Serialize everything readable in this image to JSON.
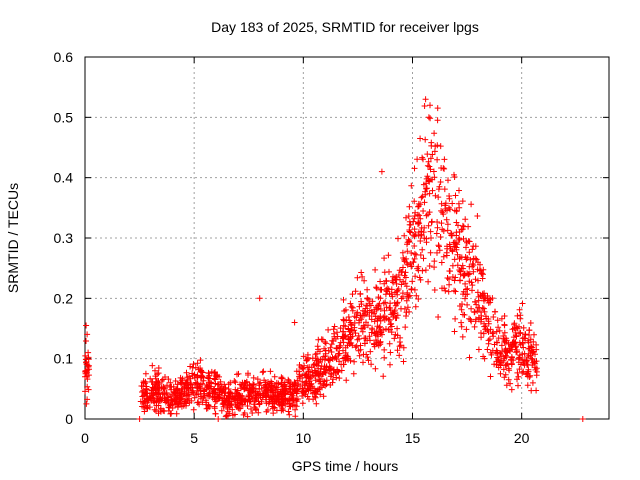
{
  "chart_data": {
    "type": "scatter",
    "title": "Day 183 of 2025, SRMTID for receiver lpgs",
    "xlabel": "GPS time / hours",
    "ylabel": "SRMTID / TECUs",
    "xlim": [
      0,
      24
    ],
    "ylim": [
      0,
      0.6
    ],
    "xticks": [
      0,
      5,
      10,
      15,
      20
    ],
    "xtick_labels": [
      "0",
      "5",
      "10",
      "15",
      "20"
    ],
    "yticks": [
      0,
      0.1,
      0.2,
      0.3,
      0.4,
      0.5,
      0.6
    ],
    "ytick_labels": [
      "0",
      "0.1",
      "0.2",
      "0.3",
      "0.4",
      "0.5",
      "0.6"
    ],
    "grid": true,
    "marker": "+",
    "color": "#ff0000",
    "series": [
      {
        "name": "SRMTID",
        "trend_x": [
          0.0,
          0.2,
          2.5,
          3.0,
          3.5,
          4.0,
          4.5,
          5.0,
          5.5,
          6.0,
          6.5,
          7.0,
          7.5,
          8.0,
          8.5,
          9.0,
          9.5,
          10.0,
          10.5,
          11.0,
          11.5,
          12.0,
          12.5,
          13.0,
          13.5,
          14.0,
          14.5,
          15.0,
          15.5,
          16.0,
          16.5,
          17.0,
          17.5,
          18.0,
          18.5,
          19.0,
          19.5,
          20.0,
          20.5,
          20.7
        ],
        "trend_y": [
          0.08,
          0.08,
          0.04,
          0.05,
          0.04,
          0.035,
          0.045,
          0.06,
          0.055,
          0.045,
          0.035,
          0.04,
          0.04,
          0.045,
          0.04,
          0.04,
          0.045,
          0.06,
          0.07,
          0.09,
          0.1,
          0.13,
          0.17,
          0.16,
          0.17,
          0.19,
          0.21,
          0.27,
          0.34,
          0.38,
          0.31,
          0.27,
          0.25,
          0.21,
          0.15,
          0.12,
          0.11,
          0.12,
          0.1,
          0.09
        ],
        "outliers": [
          {
            "x": 0.05,
            "y": 0.155
          },
          {
            "x": 2.5,
            "y": 0.0
          },
          {
            "x": 6.1,
            "y": 0.0
          },
          {
            "x": 8.0,
            "y": 0.2
          },
          {
            "x": 9.6,
            "y": 0.16
          },
          {
            "x": 13.6,
            "y": 0.41
          },
          {
            "x": 15.6,
            "y": 0.53
          },
          {
            "x": 15.8,
            "y": 0.52
          },
          {
            "x": 22.8,
            "y": 0.0
          }
        ]
      }
    ]
  }
}
